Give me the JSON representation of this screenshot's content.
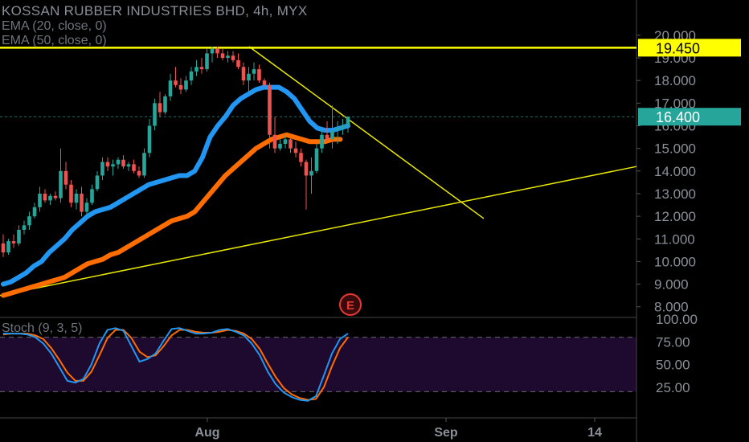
{
  "header": {
    "title": "KOSSAN RUBBER INDUSTRIES BHD, 4h, MYX",
    "indicators": [
      "EMA (20, close, 0)",
      "EMA (50, close, 0)"
    ],
    "stoch_label": "Stoch (9, 3, 5)",
    "event_marker": "E"
  },
  "colors": {
    "background": "#000000",
    "up": "#26a69a",
    "down": "#ef5350",
    "ema20": "#2196f3",
    "ema50": "#ff6d00",
    "resistance": "#ffff00",
    "trendline": "#e8e800",
    "price_tag": "#26a69a",
    "stoch_k": "#2196f3",
    "stoch_d": "#ff6d00",
    "stoch_band": "#1e0a2e"
  },
  "chart_data": {
    "type": "candlestick",
    "price_axis": {
      "range": [
        7.6,
        20.6
      ],
      "ticks": [
        "8.000",
        "9.000",
        "10.000",
        "11.000",
        "12.000",
        "13.000",
        "14.000",
        "15.000",
        "16.000",
        "17.000",
        "18.000",
        "19.000",
        "20.000"
      ]
    },
    "x_axis": {
      "ticks": [
        "Aug",
        "Sep",
        "14"
      ]
    },
    "last_price": {
      "value": 16.4,
      "label": "16.400"
    },
    "resistance": {
      "value": 19.45,
      "label": "19.450"
    },
    "candles": [
      [
        10.8,
        11.2,
        10.2,
        10.4
      ],
      [
        10.4,
        11.0,
        10.3,
        10.9
      ],
      [
        10.9,
        11.2,
        10.6,
        10.8
      ],
      [
        10.8,
        11.6,
        10.7,
        11.4
      ],
      [
        11.4,
        11.8,
        11.2,
        11.6
      ],
      [
        11.6,
        12.2,
        11.4,
        12.0
      ],
      [
        12.0,
        12.6,
        11.9,
        12.4
      ],
      [
        12.4,
        13.3,
        12.2,
        13.0
      ],
      [
        13.0,
        13.2,
        12.6,
        12.7
      ],
      [
        12.7,
        13.0,
        12.5,
        12.9
      ],
      [
        12.9,
        13.1,
        12.7,
        12.8
      ],
      [
        12.8,
        15.0,
        12.6,
        14.0
      ],
      [
        14.0,
        14.4,
        13.2,
        13.4
      ],
      [
        13.4,
        13.6,
        12.4,
        12.6
      ],
      [
        12.6,
        13.2,
        12.3,
        13.0
      ],
      [
        13.0,
        13.3,
        12.0,
        12.2
      ],
      [
        12.2,
        12.8,
        12.0,
        12.6
      ],
      [
        12.6,
        13.4,
        12.5,
        13.2
      ],
      [
        13.2,
        14.0,
        13.1,
        13.8
      ],
      [
        13.8,
        14.6,
        13.6,
        14.4
      ],
      [
        14.4,
        14.6,
        14.0,
        14.2
      ],
      [
        14.2,
        14.5,
        13.8,
        14.3
      ],
      [
        14.3,
        14.6,
        14.1,
        14.5
      ],
      [
        14.5,
        14.7,
        14.1,
        14.2
      ],
      [
        14.2,
        14.4,
        14.0,
        14.3
      ],
      [
        14.3,
        14.5,
        13.9,
        14.0
      ],
      [
        14.0,
        14.2,
        13.7,
        13.8
      ],
      [
        13.8,
        15.0,
        13.7,
        14.8
      ],
      [
        14.8,
        16.3,
        14.6,
        16.0
      ],
      [
        16.0,
        17.2,
        15.8,
        17.0
      ],
      [
        17.0,
        17.5,
        16.4,
        16.6
      ],
      [
        16.6,
        17.4,
        16.5,
        17.3
      ],
      [
        17.3,
        18.3,
        17.1,
        18.0
      ],
      [
        18.0,
        18.6,
        17.7,
        17.8
      ],
      [
        17.8,
        18.1,
        17.4,
        17.6
      ],
      [
        17.6,
        18.2,
        17.5,
        18.0
      ],
      [
        18.0,
        18.6,
        17.8,
        18.4
      ],
      [
        18.4,
        18.9,
        18.2,
        18.6
      ],
      [
        18.6,
        19.0,
        18.3,
        18.5
      ],
      [
        18.5,
        19.4,
        18.4,
        19.2
      ],
      [
        19.2,
        19.5,
        18.8,
        19.4
      ],
      [
        19.4,
        19.5,
        19.0,
        19.2
      ],
      [
        19.2,
        19.4,
        18.9,
        19.0
      ],
      [
        19.0,
        19.3,
        18.8,
        19.1
      ],
      [
        19.1,
        19.3,
        18.8,
        18.9
      ],
      [
        18.9,
        19.2,
        18.5,
        18.6
      ],
      [
        18.6,
        18.8,
        17.8,
        18.0
      ],
      [
        18.0,
        18.6,
        17.5,
        18.3
      ],
      [
        18.3,
        18.8,
        18.0,
        18.5
      ],
      [
        18.5,
        18.7,
        17.9,
        18.0
      ],
      [
        18.0,
        18.1,
        17.7,
        17.8
      ],
      [
        17.8,
        17.9,
        15.0,
        15.6
      ],
      [
        15.6,
        16.4,
        14.8,
        15.0
      ],
      [
        15.0,
        15.4,
        14.9,
        15.2
      ],
      [
        15.2,
        15.6,
        15.0,
        15.4
      ],
      [
        15.4,
        15.5,
        14.8,
        15.0
      ],
      [
        15.0,
        15.3,
        14.6,
        14.8
      ],
      [
        14.8,
        15.0,
        14.2,
        14.4
      ],
      [
        14.4,
        14.5,
        12.3,
        13.8
      ],
      [
        13.8,
        14.6,
        13.0,
        14.0
      ],
      [
        14.0,
        15.2,
        13.9,
        15.0
      ],
      [
        15.0,
        15.8,
        14.8,
        15.6
      ],
      [
        15.6,
        16.2,
        15.3,
        15.4
      ],
      [
        15.4,
        16.9,
        15.0,
        15.8
      ],
      [
        15.8,
        16.2,
        15.2,
        15.9
      ],
      [
        15.9,
        16.3,
        15.6,
        16.0
      ],
      [
        16.0,
        16.4,
        15.7,
        16.4
      ]
    ],
    "ema20": [
      9.0,
      9.1,
      9.3,
      9.5,
      9.8,
      10.0,
      10.4,
      10.7,
      11.0,
      11.4,
      11.7,
      12.0,
      12.2,
      12.3,
      12.4,
      12.6,
      12.8,
      13.0,
      13.2,
      13.4,
      13.5,
      13.6,
      13.7,
      13.8,
      13.8,
      14.0,
      14.6,
      15.5,
      16.0,
      16.4,
      16.9,
      17.2,
      17.4,
      17.6,
      17.7,
      17.7,
      17.7,
      17.5,
      17.2,
      16.7,
      16.2,
      15.9,
      15.8,
      15.8,
      15.9,
      16.0
    ],
    "ema50": [
      8.5,
      8.6,
      8.7,
      8.8,
      8.9,
      9.0,
      9.1,
      9.2,
      9.3,
      9.5,
      9.7,
      9.9,
      10.0,
      10.1,
      10.3,
      10.4,
      10.6,
      10.8,
      11.0,
      11.2,
      11.4,
      11.6,
      11.8,
      11.9,
      12.0,
      12.2,
      12.6,
      13.0,
      13.4,
      13.8,
      14.1,
      14.4,
      14.7,
      15.0,
      15.2,
      15.4,
      15.5,
      15.6,
      15.5,
      15.4,
      15.3,
      15.3,
      15.3,
      15.4,
      15.4
    ],
    "trendlines": [
      {
        "from": [
          0,
          8.5
        ],
        "to": [
          792,
          14.2
        ]
      },
      {
        "from": [
          310,
          19.5
        ],
        "to": [
          602,
          11.9
        ]
      }
    ],
    "stochastic": {
      "range": [
        0,
        100
      ],
      "ticks": [
        "25.00",
        "50.00",
        "75.00",
        "100.00"
      ],
      "band": [
        20,
        80
      ],
      "k": [
        84,
        84,
        84,
        83,
        80,
        73,
        62,
        47,
        32,
        30,
        34,
        50,
        73,
        88,
        90,
        87,
        70,
        53,
        56,
        62,
        76,
        89,
        90,
        87,
        84,
        84,
        85,
        88,
        89,
        86,
        82,
        73,
        60,
        42,
        28,
        19,
        14,
        11,
        10,
        15,
        38,
        62,
        78,
        84
      ],
      "d": [
        83,
        84,
        84,
        84,
        82,
        78,
        68,
        55,
        41,
        32,
        32,
        42,
        60,
        79,
        88,
        88,
        79,
        64,
        58,
        60,
        70,
        82,
        88,
        88,
        86,
        85,
        85,
        86,
        88,
        87,
        84,
        78,
        67,
        51,
        36,
        24,
        17,
        13,
        11,
        12,
        25,
        48,
        68,
        80
      ]
    }
  }
}
